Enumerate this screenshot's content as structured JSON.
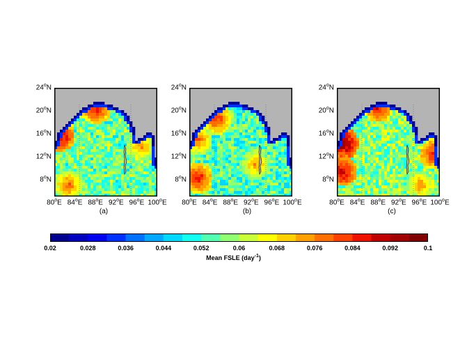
{
  "panels": [
    {
      "id": "a",
      "caption": "(a)"
    },
    {
      "id": "b",
      "caption": "(b)"
    },
    {
      "id": "c",
      "caption": "(c)"
    }
  ],
  "lat_ticks": [
    {
      "base": "24",
      "sup": "o",
      "hemi": "N"
    },
    {
      "base": "20",
      "sup": "o",
      "hemi": "N"
    },
    {
      "base": "16",
      "sup": "o",
      "hemi": "N"
    },
    {
      "base": "12",
      "sup": "o",
      "hemi": "N"
    },
    {
      "base": "8",
      "sup": "o",
      "hemi": "N"
    }
  ],
  "lon_ticks": [
    {
      "base": "80",
      "sup": "o",
      "hemi": "E"
    },
    {
      "base": "84",
      "sup": "o",
      "hemi": "E"
    },
    {
      "base": "88",
      "sup": "o",
      "hemi": "E"
    },
    {
      "base": "92",
      "sup": "o",
      "hemi": "E"
    },
    {
      "base": "96",
      "sup": "o",
      "hemi": "E"
    },
    {
      "base": "100",
      "sup": "o",
      "hemi": "E"
    }
  ],
  "colorbar": {
    "min": 0.02,
    "max": 0.1,
    "ticks": [
      "0.02",
      "0.028",
      "0.036",
      "0.044",
      "0.052",
      "0.06",
      "0.068",
      "0.076",
      "0.084",
      "0.092",
      "0.1"
    ],
    "label_main": "Mean FSLE (day",
    "label_sup": "-1",
    "label_end": ")",
    "colors": [
      "#000090",
      "#0000c0",
      "#0000f0",
      "#0030ff",
      "#0070ff",
      "#00a8ff",
      "#00d8ff",
      "#10fff0",
      "#50ffb0",
      "#90ff70",
      "#c8ff38",
      "#ffff00",
      "#ffd000",
      "#ffa000",
      "#ff7000",
      "#ff4000",
      "#f01000",
      "#c00000",
      "#a00000",
      "#800000"
    ]
  },
  "colors": {
    "land": "#b4b4b4",
    "coast_band": "#000090",
    "frame": "#000000"
  }
}
